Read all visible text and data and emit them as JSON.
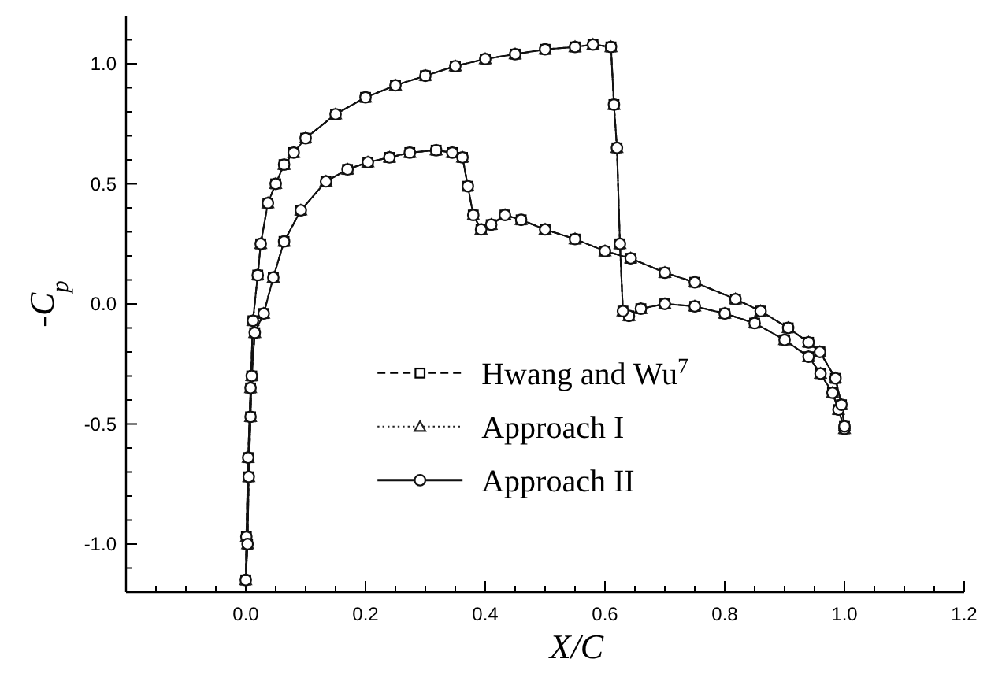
{
  "chart_data": {
    "type": "line",
    "xlabel": "X/C",
    "ylabel": "-C$_{p}$",
    "xlim": [
      -0.2,
      1.2
    ],
    "ylim": [
      -1.2,
      1.2
    ],
    "xticks": [
      {
        "value": -0.15,
        "label": null
      },
      {
        "value": -0.1,
        "label": null
      },
      {
        "value": -0.05,
        "label": null
      },
      {
        "value": 0,
        "label": "0.0"
      },
      {
        "value": 0.05,
        "label": null
      },
      {
        "value": 0.1,
        "label": null
      },
      {
        "value": 0.15,
        "label": null
      },
      0.2,
      {
        "value": 0.25,
        "label": null
      },
      {
        "value": 0.3,
        "label": null
      },
      {
        "value": 0.35,
        "label": null
      },
      0.4,
      {
        "value": 0.45,
        "label": null
      },
      {
        "value": 0.5,
        "label": null
      },
      {
        "value": 0.55,
        "label": null
      },
      0.6,
      {
        "value": 0.65,
        "label": null
      },
      {
        "value": 0.7,
        "label": null
      },
      {
        "value": 0.75,
        "label": null
      },
      0.8,
      {
        "value": 0.85,
        "label": null
      },
      {
        "value": 0.9,
        "label": null
      },
      {
        "value": 0.95,
        "label": null
      },
      {
        "value": 1,
        "label": "1.0"
      },
      {
        "value": 1.05,
        "label": null
      },
      {
        "value": 1.1,
        "label": null
      },
      {
        "value": 1.15,
        "label": null
      },
      1.2
    ],
    "yticks": [
      {
        "value": -1.1,
        "label": null
      },
      {
        "value": -1,
        "label": "-1.0"
      },
      {
        "value": -0.9,
        "label": null
      },
      {
        "value": -0.8,
        "label": null
      },
      {
        "value": -0.7,
        "label": null
      },
      {
        "value": -0.6,
        "label": null
      },
      -0.5,
      {
        "value": -0.4,
        "label": null
      },
      {
        "value": -0.3,
        "label": null
      },
      {
        "value": -0.2,
        "label": null
      },
      {
        "value": -0.1,
        "label": null
      },
      {
        "value": 0,
        "label": "0.0"
      },
      {
        "value": 0.1,
        "label": null
      },
      {
        "value": 0.2,
        "label": null
      },
      {
        "value": 0.3,
        "label": null
      },
      {
        "value": 0.4,
        "label": null
      },
      0.5,
      {
        "value": 0.6,
        "label": null
      },
      {
        "value": 0.7,
        "label": null
      },
      {
        "value": 0.8,
        "label": null
      },
      {
        "value": 0.9,
        "label": null
      },
      {
        "value": 1,
        "label": "1.0"
      },
      {
        "value": 1.1,
        "label": null
      }
    ],
    "grid": false,
    "legend": "bottom",
    "x": [
      1.0,
      0.99,
      0.98,
      0.96,
      0.94,
      0.9,
      0.85,
      0.8,
      0.75,
      0.7,
      0.66,
      0.64,
      0.63,
      0.625,
      0.62,
      0.615,
      0.61,
      0.58,
      0.55,
      0.5,
      0.45,
      0.4,
      0.35,
      0.3,
      0.25,
      0.2,
      0.15,
      0.1,
      0.08,
      0.064,
      0.05,
      0.037,
      0.025,
      0.02,
      0.012,
      0.008,
      0.004,
      0.001,
      0,
      0.003,
      0.005,
      0.008,
      0.01,
      0.015,
      0.03,
      0.046,
      0.064,
      0.092,
      0.134,
      0.17,
      0.204,
      0.24,
      0.274,
      0.318,
      0.345,
      0.362,
      0.371,
      0.38,
      0.393,
      0.41,
      0.433,
      0.46,
      0.5,
      0.55,
      0.6,
      0.643,
      0.7,
      0.75,
      0.818,
      0.86,
      0.906,
      0.94,
      0.959,
      0.985,
      0.995,
      1.0
    ],
    "series": [
      {
        "name": "Hwang and Wu$^{7}$",
        "color": "#000000",
        "marker": "square",
        "line_style": "dashed",
        "values": [
          -0.52,
          -0.44,
          -0.37,
          -0.29,
          -0.22,
          -0.15,
          -0.08,
          -0.04,
          -0.01,
          0.0,
          -0.02,
          -0.05,
          -0.03,
          0.25,
          0.65,
          0.83,
          1.07,
          1.08,
          1.07,
          1.06,
          1.04,
          1.02,
          0.99,
          0.95,
          0.91,
          0.86,
          0.79,
          0.69,
          0.63,
          0.58,
          0.5,
          0.42,
          0.25,
          0.12,
          -0.07,
          -0.35,
          -0.64,
          -0.97,
          -1.15,
          -1.0,
          -0.72,
          -0.47,
          -0.3,
          -0.12,
          -0.04,
          0.11,
          0.26,
          0.39,
          0.51,
          0.56,
          0.59,
          0.61,
          0.63,
          0.64,
          0.63,
          0.61,
          0.49,
          0.37,
          0.31,
          0.33,
          0.37,
          0.35,
          0.31,
          0.27,
          0.22,
          0.19,
          0.13,
          0.09,
          0.02,
          -0.03,
          -0.1,
          -0.16,
          -0.2,
          -0.31,
          -0.42,
          -0.51
        ]
      },
      {
        "name": "Approach I",
        "color": "#222222",
        "marker": "triangle",
        "line_style": "dotted",
        "values": [
          -0.52,
          -0.44,
          -0.37,
          -0.29,
          -0.22,
          -0.15,
          -0.08,
          -0.04,
          -0.01,
          0.0,
          -0.02,
          -0.05,
          -0.03,
          0.25,
          0.65,
          0.83,
          1.07,
          1.08,
          1.07,
          1.06,
          1.04,
          1.02,
          0.99,
          0.95,
          0.91,
          0.86,
          0.79,
          0.69,
          0.63,
          0.58,
          0.5,
          0.42,
          0.25,
          0.12,
          -0.07,
          -0.35,
          -0.64,
          -0.97,
          -1.15,
          -1.0,
          -0.72,
          -0.47,
          -0.3,
          -0.12,
          -0.04,
          0.11,
          0.26,
          0.39,
          0.51,
          0.56,
          0.59,
          0.61,
          0.63,
          0.64,
          0.63,
          0.61,
          0.49,
          0.37,
          0.31,
          0.33,
          0.37,
          0.35,
          0.31,
          0.27,
          0.22,
          0.19,
          0.13,
          0.09,
          0.02,
          -0.03,
          -0.1,
          -0.16,
          -0.2,
          -0.31,
          -0.42,
          -0.51
        ]
      },
      {
        "name": "Approach II",
        "color": "#111111",
        "marker": "circle",
        "line_style": "solid",
        "values": [
          -0.52,
          -0.44,
          -0.37,
          -0.29,
          -0.22,
          -0.15,
          -0.08,
          -0.04,
          -0.01,
          0.0,
          -0.02,
          -0.05,
          -0.03,
          0.25,
          0.65,
          0.83,
          1.07,
          1.08,
          1.07,
          1.06,
          1.04,
          1.02,
          0.99,
          0.95,
          0.91,
          0.86,
          0.79,
          0.69,
          0.63,
          0.58,
          0.5,
          0.42,
          0.25,
          0.12,
          -0.07,
          -0.35,
          -0.64,
          -0.97,
          -1.15,
          -1.0,
          -0.72,
          -0.47,
          -0.3,
          -0.12,
          -0.04,
          0.11,
          0.26,
          0.39,
          0.51,
          0.56,
          0.59,
          0.61,
          0.63,
          0.64,
          0.63,
          0.61,
          0.49,
          0.37,
          0.31,
          0.33,
          0.37,
          0.35,
          0.31,
          0.27,
          0.22,
          0.19,
          0.13,
          0.09,
          0.02,
          -0.03,
          -0.1,
          -0.16,
          -0.2,
          -0.31,
          -0.42,
          -0.51
        ]
      }
    ]
  }
}
